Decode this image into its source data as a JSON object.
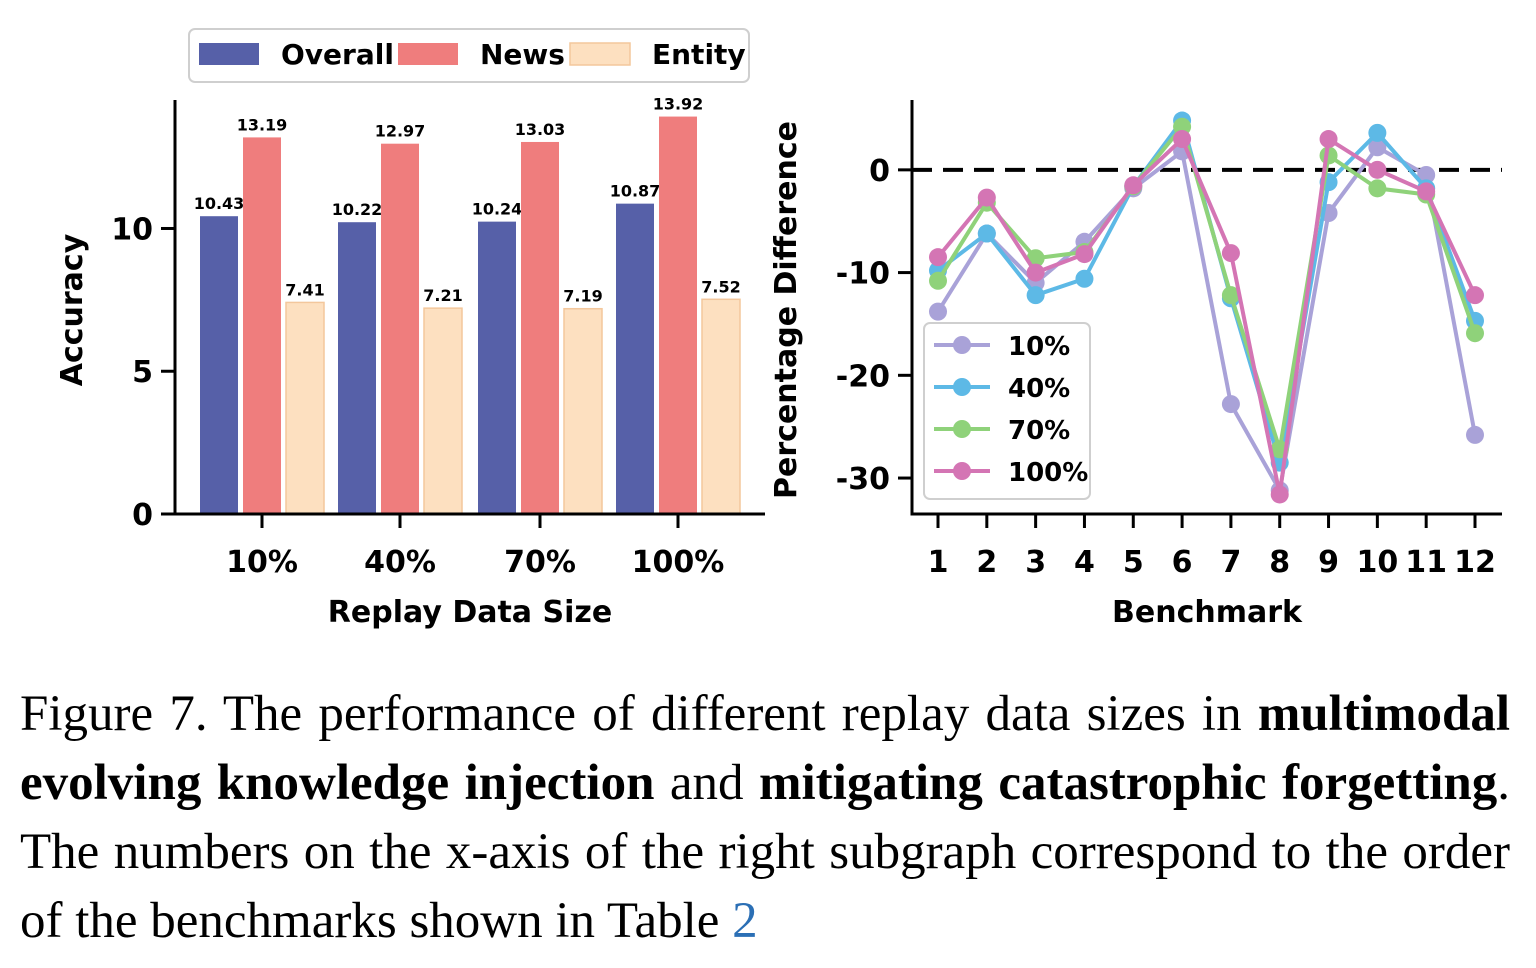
{
  "chart_data": [
    {
      "type": "bar",
      "categories": [
        "10%",
        "40%",
        "70%",
        "100%"
      ],
      "series": [
        {
          "name": "Overall",
          "values": [
            10.43,
            10.22,
            10.24,
            10.87
          ],
          "labels": [
            "10.43",
            "10.22",
            "10.24",
            "10.87"
          ],
          "color": "#5660a8"
        },
        {
          "name": "News",
          "values": [
            13.19,
            12.97,
            13.03,
            13.92
          ],
          "labels": [
            "13.19",
            "12.97",
            "13.03",
            "13.92"
          ],
          "color": "#ef7d7d"
        },
        {
          "name": "Entity",
          "values": [
            7.41,
            7.21,
            7.19,
            7.52
          ],
          "labels": [
            "7.41",
            "7.21",
            "7.19",
            "7.52"
          ],
          "color": "#fde0c0"
        }
      ],
      "xlabel": "Replay Data Size",
      "ylabel": "Accuracy",
      "ylim": [
        0,
        14.5
      ],
      "yticks": [
        0,
        5,
        10
      ],
      "ytick_labels": [
        "0",
        "5",
        "10"
      ],
      "legend_position": "top"
    },
    {
      "type": "line",
      "x": [
        1,
        2,
        3,
        4,
        5,
        6,
        7,
        8,
        9,
        10,
        11,
        12
      ],
      "xtick_labels": [
        "1",
        "2",
        "3",
        "4",
        "5",
        "6",
        "7",
        "8",
        "9",
        "10",
        "11",
        "12"
      ],
      "series": [
        {
          "name": "10%",
          "color": "#a9a2d8",
          "values": [
            -13.8,
            -6.2,
            -11.0,
            -7.0,
            -1.8,
            1.8,
            -22.8,
            -31.2,
            -4.2,
            2.2,
            -0.5,
            -25.8
          ]
        },
        {
          "name": "40%",
          "color": "#5db9e6",
          "values": [
            -9.8,
            -6.2,
            -12.2,
            -10.6,
            -1.6,
            4.8,
            -12.5,
            -28.5,
            -1.2,
            3.6,
            -1.8,
            -14.7
          ]
        },
        {
          "name": "70%",
          "color": "#8fd27a",
          "values": [
            -10.8,
            -3.2,
            -8.6,
            -8.0,
            -1.6,
            4.2,
            -12.2,
            -27.2,
            1.4,
            -1.8,
            -2.4,
            -15.9
          ]
        },
        {
          "name": "100%",
          "color": "#d475b4",
          "values": [
            -8.5,
            -2.7,
            -10.0,
            -8.2,
            -1.5,
            3.0,
            -8.1,
            -31.6,
            3.0,
            0.0,
            -2.1,
            -12.2
          ]
        }
      ],
      "xlabel": "Benchmark",
      "ylabel": "Percentage Difference",
      "ylim": [
        -33.5,
        6.8
      ],
      "yticks": [
        0,
        -10,
        -20,
        -30
      ],
      "ytick_labels": [
        "0",
        "-10",
        "-20",
        "-30"
      ],
      "reference_line": {
        "y": 0,
        "style": "dashed"
      },
      "legend_position": "lower-left"
    }
  ],
  "caption": {
    "label": "Figure 7.",
    "text1": "The performance of different replay data sizes in ",
    "bold1": "multimodal evolving knowledge injection",
    "text2": " and ",
    "bold2": "mitigating catastrophic forgetting",
    "text3": ".  The numbers on the x-axis of the right subgraph correspond to the order of the benchmarks shown in Table ",
    "ref": "2"
  }
}
